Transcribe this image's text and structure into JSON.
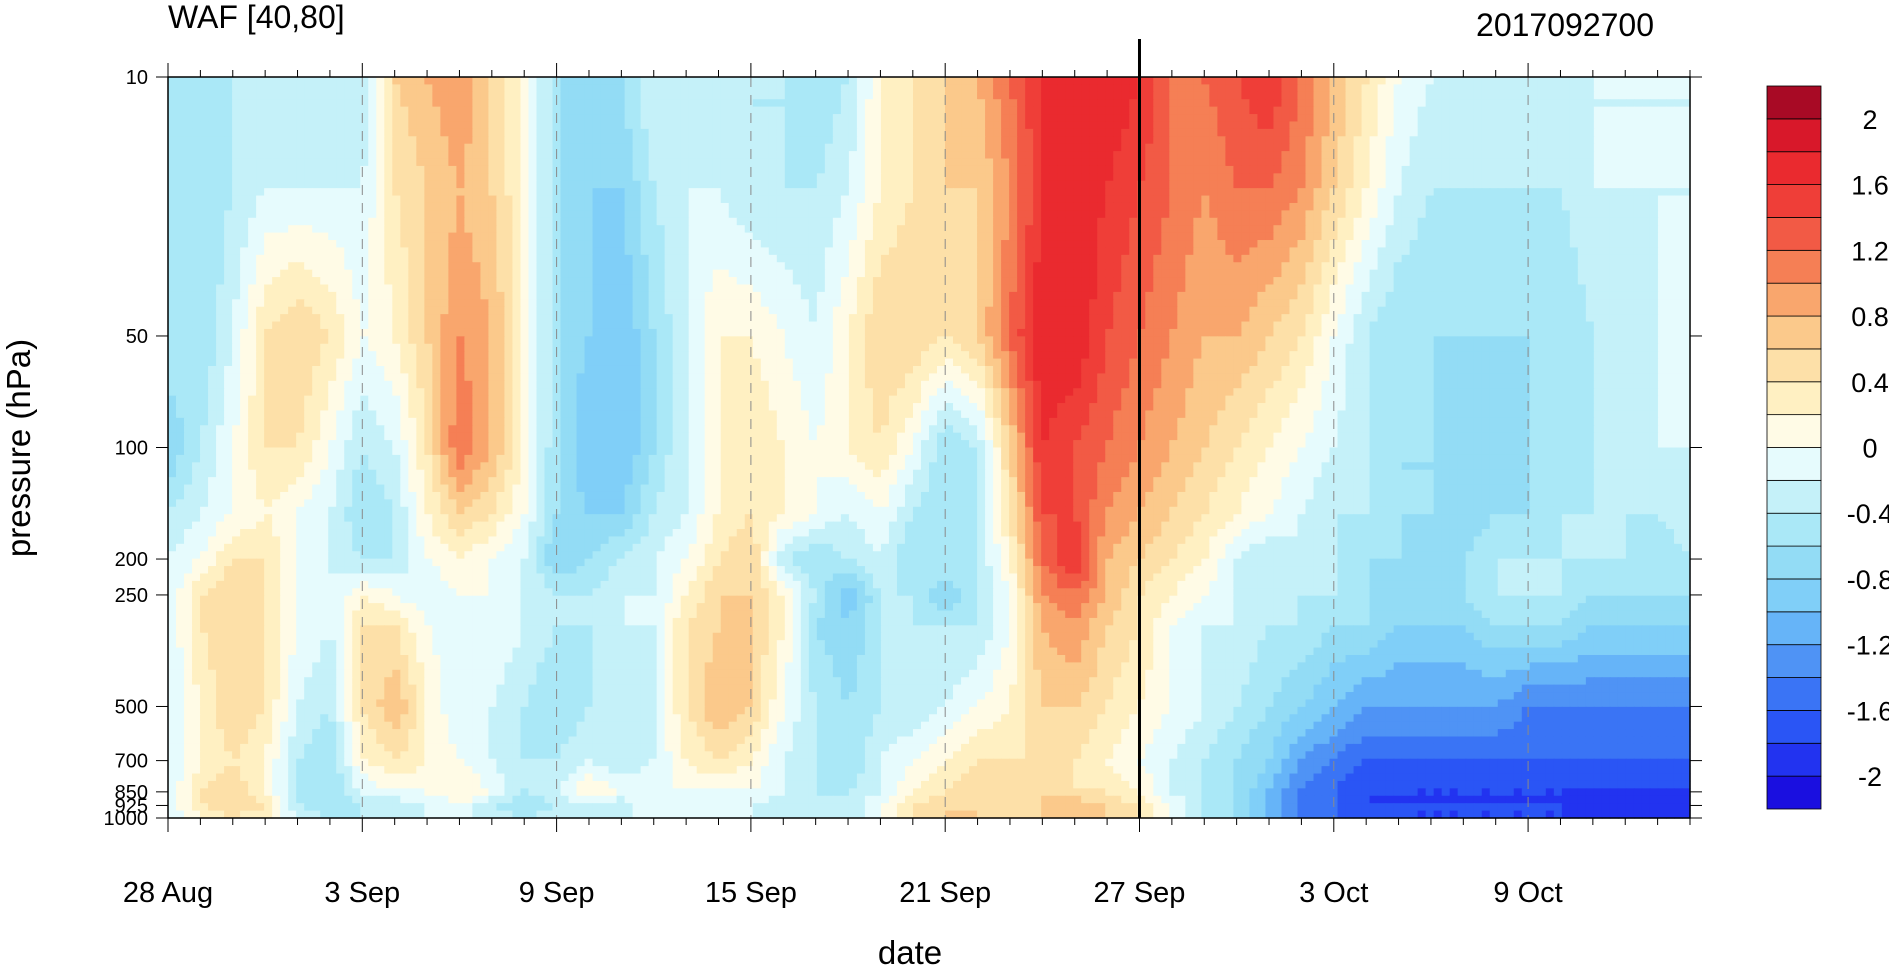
{
  "chart_data": {
    "type": "heatmap",
    "title": "WAF [40,80]",
    "right_title": "2017092700",
    "xlabel": "date",
    "ylabel": "pressure (hPa)",
    "y_scale": "log",
    "y_reversed": true,
    "ylim": [
      1000,
      10
    ],
    "x_start_date": "2017-08-28",
    "x_end_date": "2017-10-14",
    "x_ticks": [
      {
        "date": "2017-08-28",
        "label": "28 Aug"
      },
      {
        "date": "2017-09-03",
        "label": "3 Sep"
      },
      {
        "date": "2017-09-09",
        "label": "9 Sep"
      },
      {
        "date": "2017-09-15",
        "label": "15 Sep"
      },
      {
        "date": "2017-09-21",
        "label": "21 Sep"
      },
      {
        "date": "2017-09-27",
        "label": "27 Sep"
      },
      {
        "date": "2017-10-03",
        "label": "3 Oct"
      },
      {
        "date": "2017-10-09",
        "label": "9 Oct"
      }
    ],
    "y_ticks": [
      {
        "value": 10,
        "label": "10"
      },
      {
        "value": 50,
        "label": "50"
      },
      {
        "value": 100,
        "label": "100"
      },
      {
        "value": 200,
        "label": "200"
      },
      {
        "value": 250,
        "label": "250"
      },
      {
        "value": 500,
        "label": "500"
      },
      {
        "value": 700,
        "label": "700"
      },
      {
        "value": 850,
        "label": "850"
      },
      {
        "value": 925,
        "label": "925"
      },
      {
        "value": 1000,
        "label": "1000"
      }
    ],
    "marker_date": "2017-09-27",
    "dashed_gridlines": true,
    "colorbar": {
      "levels": [
        -2.2,
        -2.0,
        -1.8,
        -1.6,
        -1.4,
        -1.2,
        -1.0,
        -0.8,
        -0.6,
        -0.4,
        -0.2,
        0,
        0.2,
        0.4,
        0.6,
        0.8,
        1.0,
        1.2,
        1.4,
        1.6,
        1.8,
        2.0,
        2.2
      ],
      "colors": [
        "#1a0fe0",
        "#2233f0",
        "#2a55f5",
        "#3a74f5",
        "#4f93f5",
        "#66b4f8",
        "#80cff8",
        "#93dcf5",
        "#aae8f7",
        "#c5f1f9",
        "#e6fbfd",
        "#fffbe6",
        "#fff0c2",
        "#fde0a8",
        "#fbc98b",
        "#f9a66d",
        "#f57f55",
        "#f25a45",
        "#ef3e38",
        "#ea2a2f",
        "#d8182a",
        "#a80a25"
      ],
      "labels": [
        "-2",
        "-1.6",
        "-1.2",
        "-0.8",
        "-0.4",
        "0",
        "0.4",
        "0.8",
        "1.2",
        "1.6",
        "2"
      ],
      "label_values": [
        -2,
        -1.6,
        -1.2,
        -0.8,
        -0.4,
        0,
        0.4,
        0.8,
        1.2,
        1.6,
        2
      ]
    },
    "grid": {
      "rows_pressure": [
        10,
        20,
        50,
        100,
        150,
        200,
        250,
        300,
        500,
        700,
        850,
        925,
        1000
      ],
      "values": [
        [
          -0.4,
          -0.6,
          -0.4,
          -0.2,
          -0.4,
          -0.4,
          -0.4,
          0.6,
          0.8,
          1.0,
          0.6,
          0.2,
          -0.6,
          -0.8,
          -0.6,
          -0.2,
          -0.2,
          -0.4,
          -0.4,
          -0.4,
          -0.6,
          -0.4,
          0.2,
          0.4,
          0.6,
          0.8,
          1.2,
          1.6,
          1.8,
          1.8,
          1.6,
          1.2,
          1.2,
          1.4,
          1.6,
          1.2,
          0.8,
          0.4,
          0.0,
          -0.2,
          -0.2,
          -0.4,
          -0.2,
          -0.2,
          -0.2,
          -0.2,
          -0.2,
          -0.2
        ],
        [
          -0.4,
          -0.6,
          -0.4,
          -0.2,
          -0.2,
          -0.2,
          -0.2,
          0.4,
          0.6,
          0.8,
          0.6,
          0.2,
          -0.6,
          -0.8,
          -0.8,
          -0.4,
          -0.2,
          -0.2,
          -0.4,
          -0.4,
          -0.4,
          -0.2,
          0.2,
          0.4,
          0.6,
          0.6,
          1.0,
          1.6,
          1.8,
          1.6,
          1.4,
          1.2,
          1.0,
          1.2,
          1.2,
          1.0,
          0.6,
          0.2,
          -0.2,
          -0.4,
          -0.4,
          -0.4,
          -0.4,
          -0.4,
          -0.2,
          -0.2,
          -0.2,
          -0.2
        ],
        [
          -0.4,
          -0.6,
          -0.2,
          0.4,
          0.6,
          0.4,
          0.0,
          0.2,
          0.6,
          1.0,
          0.8,
          0.2,
          -0.6,
          -0.8,
          -1.0,
          -0.6,
          -0.2,
          0.2,
          0.2,
          0.0,
          -0.2,
          0.2,
          0.6,
          0.6,
          0.4,
          0.6,
          1.2,
          1.8,
          1.8,
          1.4,
          1.2,
          1.0,
          0.8,
          0.8,
          0.6,
          0.4,
          0.0,
          -0.4,
          -0.6,
          -0.6,
          -0.6,
          -0.6,
          -0.6,
          -0.6,
          -0.4,
          -0.4,
          -0.2,
          -0.2
        ],
        [
          -0.8,
          -0.4,
          0.0,
          0.4,
          0.4,
          0.0,
          -0.4,
          -0.2,
          0.4,
          1.2,
          0.8,
          0.2,
          -0.6,
          -1.0,
          -1.0,
          -0.6,
          -0.2,
          0.2,
          0.4,
          0.2,
          0.0,
          0.2,
          0.4,
          0.0,
          -0.6,
          -0.4,
          0.6,
          1.6,
          1.4,
          1.2,
          1.0,
          0.8,
          0.6,
          0.4,
          0.2,
          0.0,
          -0.2,
          -0.4,
          -0.6,
          -0.6,
          -0.8,
          -0.8,
          -0.6,
          -0.6,
          -0.4,
          -0.4,
          -0.2,
          -0.2
        ],
        [
          -0.4,
          -0.2,
          0.0,
          0.2,
          0.0,
          -0.2,
          -0.6,
          -0.4,
          0.2,
          0.6,
          0.4,
          0.0,
          -0.6,
          -0.8,
          -0.8,
          -0.4,
          -0.2,
          0.2,
          0.4,
          0.2,
          0.0,
          -0.2,
          0.0,
          -0.4,
          -0.6,
          -0.4,
          0.4,
          1.4,
          1.4,
          1.0,
          0.8,
          0.6,
          0.4,
          0.2,
          0.0,
          -0.2,
          -0.4,
          -0.4,
          -0.6,
          -0.6,
          -0.8,
          -0.6,
          -0.6,
          -0.4,
          -0.4,
          -0.4,
          -0.4,
          -0.2
        ],
        [
          -0.2,
          0.0,
          0.4,
          0.4,
          0.0,
          -0.2,
          -0.4,
          -0.4,
          0.0,
          0.2,
          0.0,
          -0.2,
          -0.8,
          -0.6,
          -0.4,
          -0.2,
          0.0,
          0.4,
          0.6,
          -0.4,
          -0.6,
          -0.4,
          -0.2,
          -0.6,
          -0.4,
          -0.4,
          0.2,
          1.2,
          1.6,
          0.8,
          0.6,
          0.4,
          0.2,
          -0.2,
          -0.4,
          -0.2,
          -0.4,
          -0.6,
          -0.6,
          -0.8,
          -0.6,
          -0.4,
          -0.4,
          -0.4,
          -0.4,
          -0.4,
          -0.6,
          -0.4
        ],
        [
          -0.2,
          0.4,
          0.6,
          0.4,
          0.0,
          -0.2,
          0.2,
          0.0,
          -0.2,
          0.0,
          0.0,
          -0.2,
          -0.4,
          -0.4,
          -0.2,
          -0.2,
          0.2,
          0.6,
          0.6,
          0.2,
          -0.4,
          -1.0,
          -0.4,
          -0.4,
          -0.8,
          -0.4,
          0.0,
          1.0,
          1.2,
          0.8,
          0.4,
          0.2,
          0.0,
          -0.2,
          -0.2,
          -0.4,
          -0.4,
          -0.6,
          -0.8,
          -0.8,
          -0.6,
          -0.4,
          -0.4,
          -0.4,
          -0.6,
          -0.6,
          -0.6,
          -0.6
        ],
        [
          -0.2,
          0.4,
          0.6,
          0.4,
          0.0,
          -0.2,
          0.4,
          0.4,
          0.0,
          -0.2,
          0.0,
          -0.2,
          -0.4,
          -0.4,
          -0.2,
          -0.2,
          0.4,
          0.6,
          0.6,
          0.2,
          -0.6,
          -0.8,
          -0.4,
          -0.4,
          -0.4,
          -0.4,
          0.0,
          0.8,
          1.0,
          0.6,
          0.4,
          0.0,
          -0.2,
          -0.2,
          -0.4,
          -0.4,
          -0.6,
          -0.6,
          -0.8,
          -0.8,
          -0.8,
          -0.6,
          -0.6,
          -0.6,
          -0.8,
          -0.8,
          -0.8,
          -0.8
        ],
        [
          -0.2,
          0.2,
          0.6,
          0.4,
          -0.2,
          -0.4,
          0.4,
          0.8,
          0.2,
          -0.2,
          -0.2,
          -0.4,
          -0.6,
          -0.4,
          -0.4,
          -0.2,
          0.4,
          0.8,
          0.6,
          0.0,
          -0.4,
          -0.6,
          -0.4,
          -0.4,
          -0.2,
          0.0,
          0.2,
          0.6,
          0.6,
          0.4,
          0.2,
          0.0,
          -0.2,
          -0.4,
          -0.6,
          -0.8,
          -1.0,
          -1.2,
          -1.2,
          -1.2,
          -1.2,
          -1.2,
          -1.4,
          -1.4,
          -1.4,
          -1.4,
          -1.4,
          -1.4
        ],
        [
          -0.2,
          0.2,
          0.4,
          0.2,
          -0.4,
          -0.6,
          0.2,
          0.4,
          0.2,
          0.0,
          -0.2,
          -0.4,
          -0.4,
          -0.2,
          -0.4,
          -0.2,
          0.2,
          0.4,
          0.2,
          -0.2,
          -0.4,
          -0.6,
          -0.2,
          0.0,
          0.2,
          0.4,
          0.4,
          0.4,
          0.4,
          0.2,
          0.0,
          -0.2,
          -0.4,
          -0.6,
          -0.8,
          -1.2,
          -1.4,
          -1.6,
          -1.6,
          -1.6,
          -1.6,
          -1.6,
          -1.6,
          -1.6,
          -1.6,
          -1.6,
          -1.6,
          -1.6
        ],
        [
          -0.2,
          0.4,
          0.6,
          0.2,
          -0.4,
          -0.6,
          -0.2,
          0.0,
          0.0,
          0.2,
          0.0,
          -0.4,
          -0.2,
          0.2,
          0.0,
          0.0,
          0.0,
          0.0,
          0.0,
          -0.2,
          -0.4,
          -0.4,
          -0.2,
          0.2,
          0.4,
          0.6,
          0.6,
          0.6,
          0.4,
          0.4,
          0.2,
          -0.2,
          -0.4,
          -0.6,
          -1.0,
          -1.4,
          -1.6,
          -1.8,
          -1.8,
          -1.8,
          -1.8,
          -1.8,
          -1.8,
          -1.8,
          -1.8,
          -1.8,
          -1.8,
          -1.8
        ],
        [
          -0.2,
          0.4,
          0.6,
          0.4,
          -0.4,
          -0.6,
          -0.4,
          -0.4,
          -0.2,
          0.0,
          -0.4,
          -0.6,
          -0.4,
          -0.2,
          -0.4,
          0.0,
          -0.2,
          -0.2,
          -0.2,
          -0.4,
          -0.4,
          -0.4,
          0.0,
          0.4,
          0.6,
          0.6,
          0.4,
          0.6,
          0.8,
          0.6,
          0.4,
          0.0,
          -0.4,
          -0.6,
          -1.0,
          -1.4,
          -1.6,
          -1.8,
          -1.8,
          -1.8,
          -1.8,
          -1.8,
          -1.8,
          -1.8,
          -2.0,
          -2.0,
          -2.0,
          -1.8
        ],
        [
          -0.2,
          0.2,
          0.4,
          0.2,
          -0.2,
          -0.4,
          -0.4,
          -0.2,
          -0.2,
          -0.2,
          -0.2,
          -0.4,
          -0.2,
          -0.2,
          -0.2,
          0.0,
          -0.2,
          -0.2,
          -0.2,
          -0.4,
          -0.4,
          -0.4,
          0.0,
          0.4,
          0.6,
          0.6,
          0.4,
          0.6,
          0.8,
          0.6,
          0.4,
          0.0,
          -0.4,
          -0.6,
          -1.0,
          -1.4,
          -1.6,
          -1.8,
          -1.8,
          -1.8,
          -1.8,
          -1.8,
          -1.8,
          -1.8,
          -2.0,
          -2.0,
          -2.0,
          -1.8
        ]
      ]
    }
  }
}
